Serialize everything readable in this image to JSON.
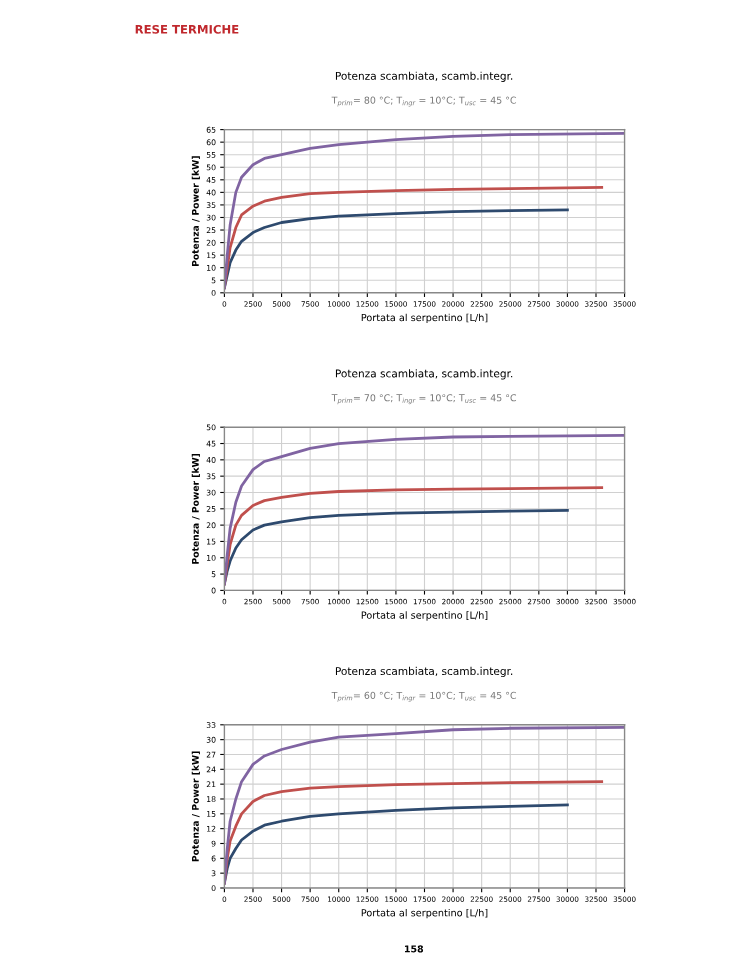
{
  "chart_data": [
    {
      "type": "line",
      "title": "Potenza scambiata, scamb.integr.",
      "subtitle": "T$_{prim}$= 80 °C; T$_{ingr}$ = 10°C; T$_{usc}$ = 45 °C",
      "xlabel": "Portata al serpentino [L/h]",
      "ylabel": "Potenza / Power [kW]",
      "annotations": [
        "RESE TERMICHE"
      ],
      "xlim": [
        0,
        35000
      ],
      "xticks": [
        0,
        2500,
        5000,
        7500,
        10000,
        12500,
        15000,
        17500,
        20000,
        22500,
        25000,
        27500,
        30000,
        32500,
        35000
      ],
      "ylim": [
        0,
        65
      ],
      "yticks": [
        0,
        5,
        10,
        15,
        20,
        25,
        30,
        35,
        40,
        45,
        50,
        55,
        60,
        65
      ],
      "grid": true,
      "legend": false,
      "marker": "none",
      "line_style": "solid",
      "series": [
        {
          "color": "#2e4a6e",
          "x": [
            0,
            250,
            500,
            1000,
            1500,
            2500,
            3500,
            5000,
            7500,
            10000,
            15000,
            20000,
            25000,
            30000
          ],
          "values": [
            2,
            7,
            12,
            17,
            20.5,
            24,
            26,
            28,
            29.5,
            30.5,
            31.5,
            32.3,
            32.7,
            33
          ]
        },
        {
          "color": "#c0504d",
          "x": [
            0,
            250,
            500,
            1000,
            1500,
            2500,
            3500,
            5000,
            7500,
            10000,
            15000,
            20000,
            25000,
            33000
          ],
          "values": [
            2,
            10,
            18,
            26,
            31,
            34.5,
            36.5,
            38,
            39.5,
            40,
            40.7,
            41.2,
            41.5,
            42
          ]
        },
        {
          "color": "#8064a2",
          "x": [
            0,
            250,
            500,
            1000,
            1500,
            2500,
            3500,
            5000,
            7500,
            10000,
            15000,
            20000,
            25000,
            35000
          ],
          "values": [
            2,
            15,
            27,
            40,
            46,
            51,
            53.5,
            55,
            57.5,
            59,
            61,
            62.3,
            63,
            63.5
          ]
        }
      ]
    },
    {
      "type": "line",
      "title": "Potenza scambiata, scamb.integr.",
      "subtitle": "T$_{prim}$= 70 °C; T$_{ingr}$ = 10°C; T$_{usc}$ = 45 °C",
      "xlabel": "Portata al serpentino [L/h]",
      "ylabel": "Potenza / Power [kW]",
      "xlim": [
        0,
        35000
      ],
      "xticks": [
        0,
        2500,
        5000,
        7500,
        10000,
        12500,
        15000,
        17500,
        20000,
        22500,
        25000,
        27500,
        30000,
        32500,
        35000
      ],
      "ylim": [
        0,
        50
      ],
      "yticks": [
        0,
        5,
        10,
        15,
        20,
        25,
        30,
        35,
        40,
        45,
        50
      ],
      "grid": true,
      "legend": false,
      "marker": "none",
      "line_style": "solid",
      "series": [
        {
          "color": "#2e4a6e",
          "x": [
            0,
            250,
            500,
            1000,
            1500,
            2500,
            3500,
            5000,
            7500,
            10000,
            15000,
            20000,
            25000,
            30000
          ],
          "values": [
            2,
            6,
            9,
            13,
            15.5,
            18.5,
            20,
            21,
            22.3,
            23,
            23.7,
            24,
            24.3,
            24.5
          ]
        },
        {
          "color": "#c0504d",
          "x": [
            0,
            250,
            500,
            1000,
            1500,
            2500,
            3500,
            5000,
            7500,
            10000,
            15000,
            20000,
            25000,
            33000
          ],
          "values": [
            2,
            8,
            14,
            20,
            23,
            26,
            27.5,
            28.5,
            29.7,
            30.3,
            30.8,
            31,
            31.2,
            31.5
          ]
        },
        {
          "color": "#8064a2",
          "x": [
            0,
            250,
            500,
            1000,
            1500,
            2500,
            3500,
            5000,
            7500,
            10000,
            15000,
            20000,
            25000,
            35000
          ],
          "values": [
            2,
            11,
            19,
            27,
            32,
            37,
            39.5,
            41,
            43.5,
            45,
            46.3,
            47,
            47.2,
            47.5
          ]
        }
      ]
    },
    {
      "type": "line",
      "title": "Potenza scambiata, scamb.integr.",
      "subtitle": "T$_{prim}$= 60 °C; T$_{ingr}$ = 10°C; T$_{usc}$ = 45 °C",
      "xlabel": "Portata al serpentino [L/h]",
      "ylabel": "Potenza / Power [kW]",
      "annotations": [
        "158"
      ],
      "xlim": [
        0,
        35000
      ],
      "xticks": [
        0,
        2500,
        5000,
        7500,
        10000,
        12500,
        15000,
        17500,
        20000,
        22500,
        25000,
        27500,
        30000,
        32500,
        35000
      ],
      "ylim": [
        0,
        33
      ],
      "yticks": [
        0,
        3,
        6,
        9,
        12,
        15,
        18,
        21,
        24,
        27,
        30,
        33
      ],
      "grid": true,
      "legend": false,
      "marker": "none",
      "line_style": "solid",
      "series": [
        {
          "color": "#2e4a6e",
          "x": [
            0,
            250,
            500,
            1000,
            1500,
            2500,
            3500,
            5000,
            7500,
            10000,
            15000,
            20000,
            25000,
            30000
          ],
          "values": [
            1,
            4,
            6,
            8,
            9.7,
            11.5,
            12.7,
            13.5,
            14.5,
            15,
            15.7,
            16.2,
            16.5,
            16.8
          ]
        },
        {
          "color": "#c0504d",
          "x": [
            0,
            250,
            500,
            1000,
            1500,
            2500,
            3500,
            5000,
            7500,
            10000,
            15000,
            20000,
            25000,
            33000
          ],
          "values": [
            1,
            6,
            9.5,
            12.5,
            15,
            17.5,
            18.7,
            19.5,
            20.2,
            20.5,
            20.9,
            21.1,
            21.3,
            21.5
          ]
        },
        {
          "color": "#8064a2",
          "x": [
            0,
            250,
            500,
            1000,
            1500,
            2500,
            3500,
            5000,
            7500,
            10000,
            15000,
            20000,
            25000,
            35000
          ],
          "values": [
            1,
            8,
            13.5,
            18,
            21.5,
            25,
            26.7,
            28,
            29.5,
            30.5,
            31.2,
            32,
            32.3,
            32.5
          ]
        }
      ]
    }
  ]
}
